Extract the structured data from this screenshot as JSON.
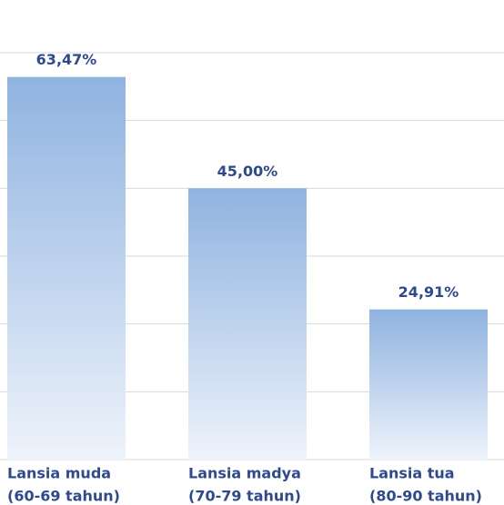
{
  "chart_data": {
    "type": "bar",
    "categories": [
      [
        "Lansia muda",
        "(60-69 tahun)"
      ],
      [
        "Lansia madya",
        "(70-79 tahun)"
      ],
      [
        "Lansia tua",
        "(80-90 tahun)"
      ]
    ],
    "values": [
      63.47,
      45.0,
      24.91
    ],
    "value_labels": [
      "63,47%",
      "45,00%",
      "24,91%"
    ],
    "color": "#8fb3e0",
    "ylim": [
      0,
      67.5
    ],
    "yticks": [
      0,
      11.25,
      22.5,
      33.75,
      45,
      56.25,
      67.5
    ],
    "grid": true
  }
}
